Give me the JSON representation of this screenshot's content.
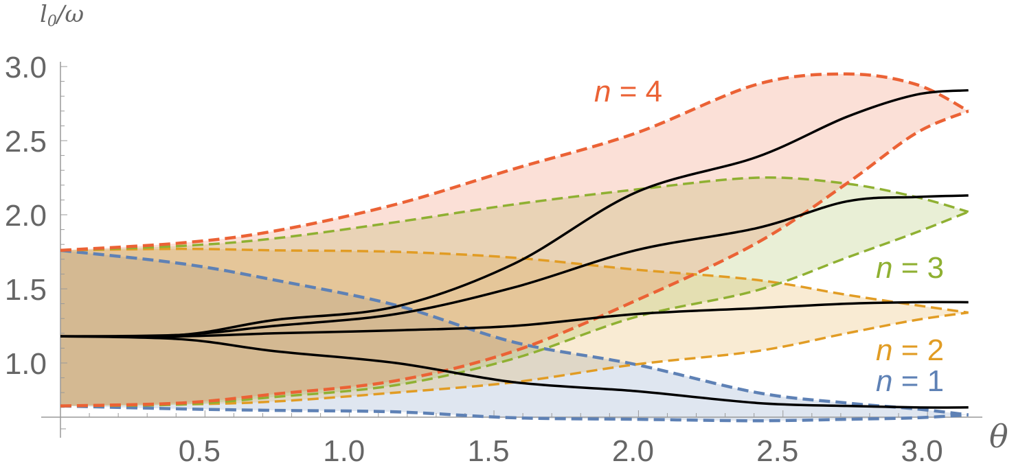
{
  "chart_data": {
    "type": "line",
    "title": "",
    "xlabel": "θ",
    "ylabel": "l0/ω",
    "ylabel_parts": {
      "main": "l",
      "sub": "0",
      "rest": "/ω"
    },
    "xlim": [
      0,
      3.1416
    ],
    "ylim": [
      0.63,
      3.05
    ],
    "x_ticks": [
      "0.5",
      "1.0",
      "1.5",
      "2.0",
      "2.5",
      "3.0"
    ],
    "x_tick_values": [
      0.5,
      1.0,
      1.5,
      2.0,
      2.5,
      3.0
    ],
    "y_ticks": [
      "1.0",
      "1.5",
      "2.0",
      "2.5",
      "3.0"
    ],
    "y_tick_values": [
      1.0,
      1.5,
      2.0,
      2.5,
      3.0
    ],
    "grid": false,
    "x": [
      0,
      0.42,
      0.74,
      1.16,
      1.57,
      1.99,
      2.41,
      2.72,
      2.96,
      3.1416
    ],
    "bands": [
      {
        "name": "n = 1",
        "color": "#5E81B5",
        "upper": [
          1.76,
          1.67,
          1.56,
          1.39,
          1.14,
          0.99,
          0.8,
          0.73,
          0.69,
          0.65
        ],
        "lower": [
          0.71,
          0.69,
          0.68,
          0.67,
          0.63,
          0.62,
          0.61,
          0.62,
          0.63,
          0.65
        ],
        "center": [
          1.18,
          1.16,
          1.08,
          1.0,
          0.87,
          0.81,
          0.73,
          0.71,
          0.7,
          0.7
        ]
      },
      {
        "name": "n = 2",
        "color": "#E19C24",
        "upper": [
          1.76,
          1.77,
          1.76,
          1.75,
          1.71,
          1.63,
          1.56,
          1.46,
          1.39,
          1.34
        ],
        "lower": [
          0.71,
          0.72,
          0.74,
          0.8,
          0.87,
          0.99,
          1.08,
          1.2,
          1.29,
          1.34
        ],
        "center": [
          1.18,
          1.18,
          1.2,
          1.22,
          1.25,
          1.33,
          1.37,
          1.4,
          1.41,
          1.41
        ]
      },
      {
        "name": "n = 3",
        "color": "#8FB032",
        "upper": [
          1.76,
          1.79,
          1.84,
          1.95,
          2.07,
          2.17,
          2.25,
          2.21,
          2.12,
          2.02
        ],
        "lower": [
          0.71,
          0.72,
          0.77,
          0.85,
          1.03,
          1.31,
          1.49,
          1.71,
          1.88,
          2.02
        ],
        "center": [
          1.18,
          1.19,
          1.25,
          1.33,
          1.51,
          1.76,
          1.91,
          2.09,
          2.12,
          2.13
        ]
      },
      {
        "name": "n = 4",
        "color": "#EB6235",
        "upper": [
          1.76,
          1.81,
          1.89,
          2.07,
          2.31,
          2.55,
          2.88,
          2.95,
          2.88,
          2.7
        ],
        "lower": [
          0.71,
          0.73,
          0.79,
          0.88,
          1.08,
          1.42,
          1.81,
          2.21,
          2.55,
          2.7
        ],
        "center": [
          1.18,
          1.19,
          1.29,
          1.38,
          1.67,
          2.15,
          2.39,
          2.66,
          2.81,
          2.84
        ]
      }
    ],
    "center_line_color": "#000000",
    "band_fill_opacity": 0.2
  }
}
